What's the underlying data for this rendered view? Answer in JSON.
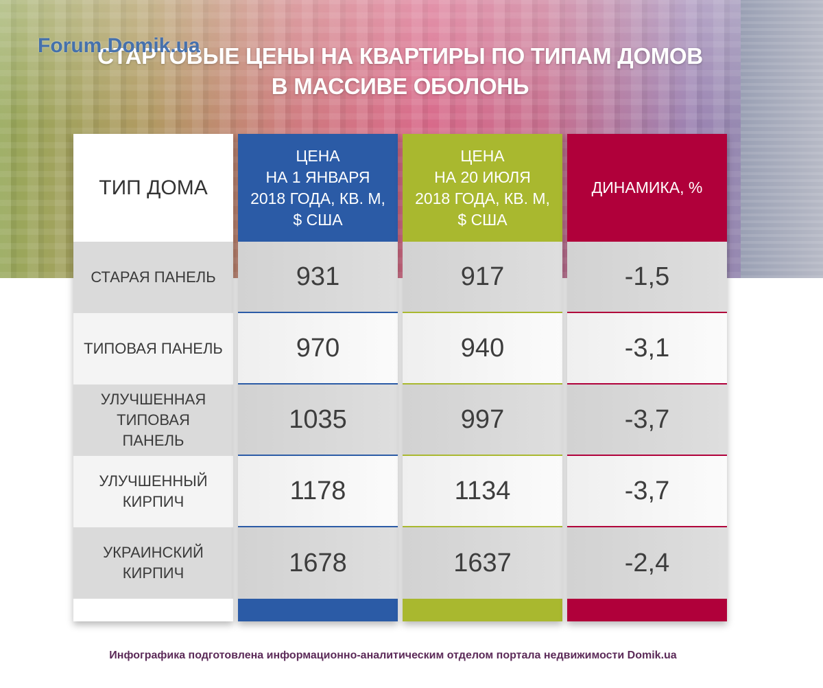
{
  "watermark": "Forum.Domik.ua",
  "colors": {
    "col0": "#ffffff",
    "col1": "#2b5ba6",
    "col2": "#a9b82f",
    "col3": "#b0003a",
    "row_dark": "#dadada",
    "row_light": "#f4f4f4",
    "footer_text": "#5b2a58"
  },
  "chart_data": {
    "type": "table",
    "title_lines": [
      "СТАРТОВЫЕ ЦЕНЫ НА КВАРТИРЫ ПО ТИПАМ ДОМОВ",
      "В МАССИВЕ ОБОЛОНЬ"
    ],
    "columns": [
      {
        "header_lines": [
          "ТИП ДОМА"
        ]
      },
      {
        "header_lines": [
          "ЦЕНА",
          "НА 1 ЯНВАРЯ",
          "2018 ГОДА, КВ. М,",
          "$ США"
        ]
      },
      {
        "header_lines": [
          "ЦЕНА",
          "НА 20 ИЮЛЯ",
          "2018 ГОДА, КВ. М,",
          "$ США"
        ]
      },
      {
        "header_lines": [
          "ДИНАМИКА, %"
        ]
      }
    ],
    "rows": [
      {
        "label_lines": [
          "СТАРАЯ ПАНЕЛЬ"
        ],
        "price_jan": "931",
        "price_jul": "917",
        "change_pct": "-1,5"
      },
      {
        "label_lines": [
          "ТИПОВАЯ ПАНЕЛЬ"
        ],
        "price_jan": "970",
        "price_jul": "940",
        "change_pct": "-3,1"
      },
      {
        "label_lines": [
          "УЛУЧШЕННАЯ",
          "ТИПОВАЯ",
          "ПАНЕЛЬ"
        ],
        "price_jan": "1035",
        "price_jul": "997",
        "change_pct": "-3,7"
      },
      {
        "label_lines": [
          "УЛУЧШЕННЫЙ",
          "КИРПИЧ"
        ],
        "price_jan": "1178",
        "price_jul": "1134",
        "change_pct": "-3,7"
      },
      {
        "label_lines": [
          "УКРАИНСКИЙ",
          "КИРПИЧ"
        ],
        "price_jan": "1678",
        "price_jul": "1637",
        "change_pct": "-2,4"
      }
    ]
  },
  "footer": "Инфографика подготовлена информационно-аналитическим отделом портала недвижимости Domik.ua"
}
